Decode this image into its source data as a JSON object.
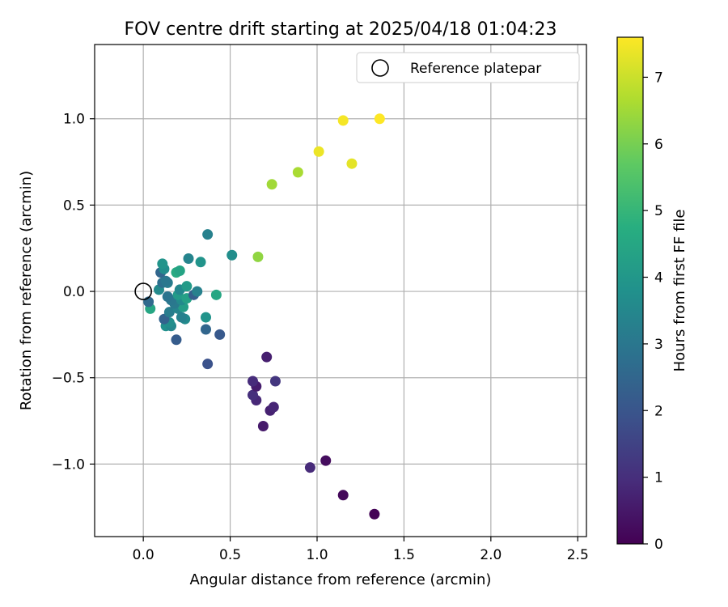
{
  "chart_data": {
    "type": "scatter",
    "title": "FOV centre drift starting at 2025/04/18 01:04:23",
    "xlabel": "Angular distance from reference (arcmin)",
    "ylabel": "Rotation from reference (arcmin)",
    "xlim": [
      -0.28,
      2.55
    ],
    "ylim": [
      -1.42,
      1.43
    ],
    "xticks": [
      0.0,
      0.5,
      1.0,
      1.5,
      2.0,
      2.5
    ],
    "xtick_labels": [
      "0.0",
      "0.5",
      "1.0",
      "1.5",
      "2.0",
      "2.5"
    ],
    "yticks": [
      -1.0,
      -0.5,
      0.0,
      0.5,
      1.0
    ],
    "ytick_labels": [
      "−1.0",
      "−0.5",
      "0.0",
      "0.5",
      "1.0"
    ],
    "grid": true,
    "legend": {
      "position": "top-right",
      "label": "Reference platepar"
    },
    "reference_point": {
      "x": 0.0,
      "y": 0.0
    },
    "colorbar": {
      "label": "Hours from first FF file",
      "colormap": "viridis",
      "range": [
        0,
        7.6
      ],
      "ticks": [
        0,
        1,
        2,
        3,
        4,
        5,
        6,
        7
      ],
      "tick_labels": [
        "0",
        "1",
        "2",
        "3",
        "4",
        "5",
        "6",
        "7"
      ]
    },
    "points": [
      {
        "x": 1.33,
        "y": -1.29,
        "c": 0.05
      },
      {
        "x": 1.15,
        "y": -1.18,
        "c": 0.15
      },
      {
        "x": 1.05,
        "y": -0.98,
        "c": 0.25
      },
      {
        "x": 0.96,
        "y": -1.02,
        "c": 0.9
      },
      {
        "x": 0.69,
        "y": -0.78,
        "c": 0.55
      },
      {
        "x": 0.73,
        "y": -0.69,
        "c": 0.7
      },
      {
        "x": 0.75,
        "y": -0.67,
        "c": 0.8
      },
      {
        "x": 0.65,
        "y": -0.63,
        "c": 0.85
      },
      {
        "x": 0.63,
        "y": -0.6,
        "c": 1.0
      },
      {
        "x": 0.65,
        "y": -0.55,
        "c": 0.6
      },
      {
        "x": 0.63,
        "y": -0.52,
        "c": 0.95
      },
      {
        "x": 0.76,
        "y": -0.52,
        "c": 1.2
      },
      {
        "x": 0.71,
        "y": -0.38,
        "c": 0.65
      },
      {
        "x": 0.37,
        "y": -0.42,
        "c": 1.9
      },
      {
        "x": 0.44,
        "y": -0.25,
        "c": 2.1
      },
      {
        "x": 0.36,
        "y": -0.22,
        "c": 2.5
      },
      {
        "x": 0.19,
        "y": -0.28,
        "c": 2.2
      },
      {
        "x": 0.36,
        "y": -0.15,
        "c": 3.9
      },
      {
        "x": 0.24,
        "y": -0.16,
        "c": 3.6
      },
      {
        "x": 0.22,
        "y": -0.15,
        "c": 3.3
      },
      {
        "x": 0.13,
        "y": -0.2,
        "c": 3.8
      },
      {
        "x": 0.16,
        "y": -0.2,
        "c": 3.5
      },
      {
        "x": 0.15,
        "y": -0.18,
        "c": 3.7
      },
      {
        "x": 0.12,
        "y": -0.16,
        "c": 2.4
      },
      {
        "x": 0.15,
        "y": -0.12,
        "c": 3.2
      },
      {
        "x": 0.2,
        "y": -0.1,
        "c": 3.4
      },
      {
        "x": 0.23,
        "y": -0.09,
        "c": 4.2
      },
      {
        "x": 0.18,
        "y": -0.07,
        "c": 3.1
      },
      {
        "x": 0.16,
        "y": -0.05,
        "c": 3.0
      },
      {
        "x": 0.22,
        "y": -0.05,
        "c": 3.6
      },
      {
        "x": 0.14,
        "y": -0.03,
        "c": 2.9
      },
      {
        "x": 0.2,
        "y": -0.02,
        "c": 4.1
      },
      {
        "x": 0.25,
        "y": -0.04,
        "c": 4.3
      },
      {
        "x": 0.04,
        "y": -0.1,
        "c": 4.5
      },
      {
        "x": 0.03,
        "y": -0.06,
        "c": 2.6
      },
      {
        "x": 0.29,
        "y": -0.02,
        "c": 2.3
      },
      {
        "x": 0.31,
        "y": 0.0,
        "c": 3.3
      },
      {
        "x": 0.42,
        "y": -0.02,
        "c": 4.5
      },
      {
        "x": 0.21,
        "y": 0.01,
        "c": 3.5
      },
      {
        "x": 0.25,
        "y": 0.03,
        "c": 4.1
      },
      {
        "x": 0.09,
        "y": 0.01,
        "c": 3.6
      },
      {
        "x": 0.11,
        "y": 0.05,
        "c": 2.8
      },
      {
        "x": 0.14,
        "y": 0.05,
        "c": 3.2
      },
      {
        "x": 0.13,
        "y": 0.06,
        "c": 3.0
      },
      {
        "x": 0.19,
        "y": 0.11,
        "c": 4.6
      },
      {
        "x": 0.21,
        "y": 0.12,
        "c": 4.4
      },
      {
        "x": 0.1,
        "y": 0.11,
        "c": 2.5
      },
      {
        "x": 0.12,
        "y": 0.13,
        "c": 3.7
      },
      {
        "x": 0.11,
        "y": 0.16,
        "c": 3.9
      },
      {
        "x": 0.26,
        "y": 0.19,
        "c": 3.4
      },
      {
        "x": 0.33,
        "y": 0.17,
        "c": 3.9
      },
      {
        "x": 0.51,
        "y": 0.21,
        "c": 3.7
      },
      {
        "x": 0.37,
        "y": 0.33,
        "c": 3.3
      },
      {
        "x": 0.66,
        "y": 0.2,
        "c": 6.3
      },
      {
        "x": 0.74,
        "y": 0.62,
        "c": 6.5
      },
      {
        "x": 0.89,
        "y": 0.69,
        "c": 6.6
      },
      {
        "x": 1.01,
        "y": 0.81,
        "c": 7.4
      },
      {
        "x": 1.2,
        "y": 0.74,
        "c": 7.3
      },
      {
        "x": 1.15,
        "y": 0.99,
        "c": 7.5
      },
      {
        "x": 1.36,
        "y": 1.0,
        "c": 7.6
      }
    ]
  }
}
